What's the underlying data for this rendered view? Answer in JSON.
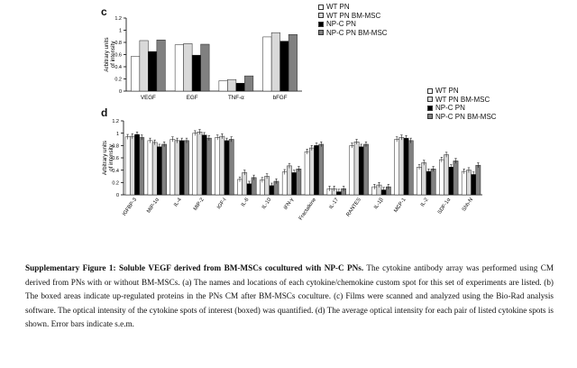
{
  "panel_c_label": "c",
  "panel_d_label": "d",
  "legend": [
    {
      "label": "WT PN",
      "color": "#ffffff"
    },
    {
      "label": "WT PN BM-MSC",
      "color": "#d9d9d9"
    },
    {
      "label": "NP-C PN",
      "color": "#000000"
    },
    {
      "label": "NP-C PN BM-MSC",
      "color": "#808080"
    }
  ],
  "caption": {
    "title": "Supplementary Figure 1: Soluble VEGF derived from BM-MSCs cocultured with NP-C PNs.",
    "body": " The cytokine antibody array was performed using CM derived from PNs with or without BM-MSCs. (a) The names and locations of each cytokine/chemokine custom spot for this set of experiments are listed. (b) The boxed areas indicate up-regulated proteins in the PNs CM after BM-MSCs coculture. (c) Films were scanned and analyzed using the Bio-Rad analysis software. The optical intensity of the cytokine spots of interest (boxed) was quantified. (d) The average optical intensity for each pair of listed cytokine spots is shown. Error bars indicate s.e.m."
  },
  "chart_data": [
    {
      "type": "bar",
      "ylabel": "Arbitrary units of intensity",
      "ylim": [
        0,
        1.2
      ],
      "yticks": [
        "0",
        "0.2",
        "0.4",
        "0.6",
        "0.8",
        "1",
        "1.2"
      ],
      "categories": [
        "VEGF",
        "EGF",
        "TNF-α",
        "bFGF"
      ],
      "series": [
        {
          "name": "WT PN",
          "values": [
            0.57,
            0.76,
            0.17,
            0.89
          ]
        },
        {
          "name": "WT PN BM-MSC",
          "values": [
            0.83,
            0.78,
            0.19,
            0.96
          ]
        },
        {
          "name": "NP-C PN",
          "values": [
            0.65,
            0.59,
            0.13,
            0.82
          ]
        },
        {
          "name": "NP-C PN BM-MSC",
          "values": [
            0.84,
            0.77,
            0.25,
            0.93
          ]
        }
      ]
    },
    {
      "type": "bar",
      "ylabel": "Arbitrary units of intensity",
      "ylim": [
        0,
        1.2
      ],
      "yticks": [
        "0",
        "0.2",
        "0.4",
        "0.6",
        "0.8",
        "1",
        "1.2"
      ],
      "categories": [
        "IGFBP-3",
        "MIP-1α",
        "IL-4",
        "MIP-2",
        "IGF-I",
        "IL-6",
        "IL-10",
        "IFN-γ",
        "Fractalkine",
        "IL-17",
        "RANTES",
        "IL-1β",
        "MCP-1",
        "IL-2",
        "SDF-1α",
        "Shh-N"
      ],
      "series": [
        {
          "name": "WT PN",
          "values": [
            0.94,
            0.88,
            0.9,
            1.0,
            0.93,
            0.25,
            0.24,
            0.37,
            0.7,
            0.1,
            0.8,
            0.13,
            0.9,
            0.45,
            0.57,
            0.38
          ]
        },
        {
          "name": "WT PN BM-MSC",
          "values": [
            0.95,
            0.85,
            0.88,
            1.02,
            0.95,
            0.36,
            0.3,
            0.47,
            0.76,
            0.1,
            0.86,
            0.16,
            0.93,
            0.52,
            0.65,
            0.4
          ]
        },
        {
          "name": "NP-C PN",
          "values": [
            0.98,
            0.78,
            0.88,
            0.97,
            0.88,
            0.18,
            0.15,
            0.36,
            0.8,
            0.05,
            0.78,
            0.08,
            0.92,
            0.38,
            0.45,
            0.33
          ]
        },
        {
          "name": "NP-C PN BM-MSC",
          "values": [
            0.93,
            0.82,
            0.88,
            0.92,
            0.9,
            0.28,
            0.22,
            0.42,
            0.82,
            0.1,
            0.82,
            0.13,
            0.88,
            0.42,
            0.55,
            0.48
          ]
        }
      ]
    }
  ]
}
